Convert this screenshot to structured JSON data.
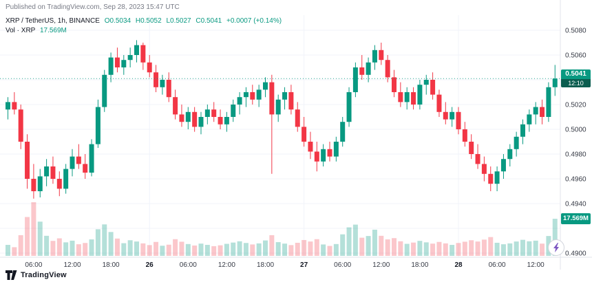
{
  "published_line": "Published on TradingView.com, Sep 28, 2023 15:47 UTC",
  "legend": {
    "symbol": "XRP / TetherUS, 1h, BINANCE",
    "open": "O0.5034",
    "high": "H0.5052",
    "low": "L0.5027",
    "close": "C0.5041",
    "change": "+0.0007 (+0.14%)",
    "volume_label": "Vol · XRP",
    "volume_value": "17.569M"
  },
  "price_axis": {
    "ticks": [
      "0.5080",
      "0.5060",
      "0.5020",
      "0.5000",
      "0.4980",
      "0.4960",
      "0.4940",
      "0.4900"
    ],
    "current_badge": {
      "price": "0.5041",
      "countdown": "12:10"
    },
    "volume_badge": "17.569M"
  },
  "footer": {
    "brand": "TradingView"
  },
  "boost_button": {
    "icon": "lightning-bolt"
  },
  "colors": {
    "up": "#089981",
    "down": "#f23645",
    "up_volume": "rgba(8,153,129,0.30)",
    "down_volume": "rgba(242,54,69,0.28)",
    "grid": "#f0f3fa",
    "axis_border": "#e0e3eb",
    "axis_text": "#363a45",
    "text_dark": "#131722",
    "text_gray": "#787b86",
    "accent": "#089981"
  },
  "chart_data": {
    "type": "candlestick",
    "title": "XRP / TetherUS, 1h, BINANCE",
    "interval": "1h",
    "ylim": [
      0.4897,
      0.5089
    ],
    "legend_position": "top-left",
    "grid_prices": [
      0.508,
      0.506,
      0.504,
      0.502,
      0.5,
      0.498,
      0.496,
      0.494,
      0.492,
      0.49
    ],
    "x_ticks": [
      {
        "i": 4,
        "label": "06:00"
      },
      {
        "i": 10,
        "label": "12:00"
      },
      {
        "i": 16,
        "label": "18:00"
      },
      {
        "i": 22,
        "label": "26",
        "day": true
      },
      {
        "i": 28,
        "label": "06:00"
      },
      {
        "i": 34,
        "label": "12:00"
      },
      {
        "i": 40,
        "label": "18:00"
      },
      {
        "i": 46,
        "label": "27",
        "day": true
      },
      {
        "i": 52,
        "label": "06:00"
      },
      {
        "i": 58,
        "label": "12:00"
      },
      {
        "i": 64,
        "label": "18:00"
      },
      {
        "i": 70,
        "label": "28",
        "day": true
      },
      {
        "i": 76,
        "label": "06:00"
      },
      {
        "i": 82,
        "label": "12:00"
      }
    ],
    "open": [
      0.5016,
      0.5022,
      0.5016,
      0.499,
      0.496,
      0.495,
      0.4962,
      0.497,
      0.496,
      0.4952,
      0.4968,
      0.4978,
      0.4972,
      0.4965,
      0.4988,
      0.5018,
      0.5044,
      0.5058,
      0.505,
      0.5056,
      0.506,
      0.5068,
      0.5054,
      0.5046,
      0.5034,
      0.504,
      0.5026,
      0.5012,
      0.5006,
      0.5014,
      0.5002,
      0.501,
      0.5016,
      0.501,
      0.5004,
      0.501,
      0.502,
      0.5026,
      0.503,
      0.5024,
      0.5032,
      0.5038,
      0.5012,
      0.5024,
      0.503,
      0.5016,
      0.5002,
      0.499,
      0.4982,
      0.4974,
      0.4984,
      0.4978,
      0.499,
      0.5006,
      0.503,
      0.505,
      0.5044,
      0.5054,
      0.5064,
      0.5056,
      0.5042,
      0.503,
      0.5022,
      0.503,
      0.502,
      0.5036,
      0.504,
      0.5028,
      0.5014,
      0.5008,
      0.5014,
      0.5,
      0.499,
      0.498,
      0.4972,
      0.4964,
      0.4956,
      0.4966,
      0.4976,
      0.4984,
      0.4994,
      0.5004,
      0.5012,
      0.5018,
      0.501,
      0.5034
    ],
    "high": [
      0.5026,
      0.503,
      0.502,
      0.4996,
      0.4972,
      0.4968,
      0.4976,
      0.4978,
      0.4966,
      0.4972,
      0.4984,
      0.4988,
      0.498,
      0.4992,
      0.5024,
      0.5048,
      0.5062,
      0.5066,
      0.506,
      0.5066,
      0.5072,
      0.507,
      0.506,
      0.5052,
      0.5044,
      0.5046,
      0.5032,
      0.502,
      0.5018,
      0.5018,
      0.5014,
      0.502,
      0.5022,
      0.5016,
      0.5014,
      0.5024,
      0.503,
      0.5034,
      0.5036,
      0.5036,
      0.5042,
      0.5044,
      0.5028,
      0.5034,
      0.5036,
      0.5022,
      0.501,
      0.4998,
      0.499,
      0.4988,
      0.499,
      0.4994,
      0.501,
      0.5034,
      0.5054,
      0.506,
      0.5058,
      0.5068,
      0.507,
      0.506,
      0.5048,
      0.5038,
      0.5034,
      0.5034,
      0.504,
      0.5044,
      0.5046,
      0.5032,
      0.5022,
      0.5018,
      0.5018,
      0.5006,
      0.4996,
      0.4988,
      0.4978,
      0.497,
      0.497,
      0.498,
      0.4988,
      0.4998,
      0.5008,
      0.5016,
      0.5022,
      0.5024,
      0.5038,
      0.5052
    ],
    "low": [
      0.5008,
      0.5012,
      0.4984,
      0.4952,
      0.4944,
      0.4945,
      0.4954,
      0.4956,
      0.4946,
      0.4948,
      0.4962,
      0.4968,
      0.496,
      0.4962,
      0.4985,
      0.5014,
      0.5038,
      0.5046,
      0.5044,
      0.505,
      0.5054,
      0.5048,
      0.5042,
      0.503,
      0.5028,
      0.5022,
      0.5008,
      0.5002,
      0.5,
      0.4998,
      0.4996,
      0.5004,
      0.5006,
      0.5,
      0.4998,
      0.5006,
      0.5012,
      0.5018,
      0.502,
      0.5018,
      0.5026,
      0.4964,
      0.5006,
      0.5016,
      0.5012,
      0.4998,
      0.4986,
      0.4976,
      0.4966,
      0.497,
      0.4974,
      0.4974,
      0.4986,
      0.5002,
      0.5026,
      0.504,
      0.5038,
      0.5048,
      0.5052,
      0.5038,
      0.5026,
      0.5018,
      0.5016,
      0.5016,
      0.5016,
      0.5028,
      0.5024,
      0.501,
      0.5004,
      0.5002,
      0.4996,
      0.4986,
      0.4976,
      0.4968,
      0.4958,
      0.495,
      0.495,
      0.496,
      0.497,
      0.4978,
      0.4988,
      0.4998,
      0.5004,
      0.5004,
      0.5006,
      0.5027
    ],
    "close": [
      0.5022,
      0.5016,
      0.499,
      0.496,
      0.495,
      0.4962,
      0.497,
      0.496,
      0.4952,
      0.4968,
      0.4978,
      0.4972,
      0.4965,
      0.4988,
      0.5018,
      0.5044,
      0.5058,
      0.505,
      0.5056,
      0.506,
      0.5068,
      0.5054,
      0.5046,
      0.5034,
      0.504,
      0.5026,
      0.5012,
      0.5006,
      0.5014,
      0.5002,
      0.501,
      0.5016,
      0.501,
      0.5004,
      0.501,
      0.502,
      0.5026,
      0.503,
      0.5024,
      0.5032,
      0.5038,
      0.5012,
      0.5024,
      0.503,
      0.5016,
      0.5002,
      0.499,
      0.4982,
      0.4974,
      0.4984,
      0.4978,
      0.499,
      0.5006,
      0.503,
      0.505,
      0.5044,
      0.5054,
      0.5064,
      0.5056,
      0.5042,
      0.503,
      0.5022,
      0.503,
      0.502,
      0.5036,
      0.504,
      0.5028,
      0.5014,
      0.5008,
      0.5014,
      0.5,
      0.499,
      0.498,
      0.4972,
      0.4964,
      0.4956,
      0.4966,
      0.4976,
      0.4984,
      0.4994,
      0.5004,
      0.5012,
      0.5018,
      0.501,
      0.5034,
      0.5041
    ],
    "volume_m": [
      5.2,
      4.1,
      9.8,
      18.4,
      25.4,
      16.2,
      9.5,
      7.1,
      8.3,
      6.4,
      7.2,
      5.5,
      6.1,
      7.8,
      12.6,
      14.9,
      11.3,
      8.2,
      6.0,
      7.4,
      6.8,
      5.9,
      5.1,
      6.6,
      4.8,
      5.3,
      7.9,
      6.7,
      5.6,
      4.9,
      5.8,
      5.2,
      4.6,
      5.0,
      5.7,
      6.3,
      6.9,
      6.1,
      5.4,
      5.9,
      7.3,
      9.8,
      6.5,
      5.8,
      5.1,
      6.2,
      7.5,
      6.8,
      7.9,
      5.4,
      4.7,
      5.6,
      10.2,
      13.5,
      14.8,
      8.6,
      9.4,
      12.4,
      9.5,
      7.8,
      8.4,
      6.9,
      5.7,
      6.3,
      7.1,
      6.4,
      5.8,
      6.6,
      5.9,
      5.2,
      6.1,
      6.7,
      7.4,
      6.8,
      7.7,
      8.9,
      6.2,
      5.5,
      5.9,
      6.8,
      7.6,
      6.9,
      7.2,
      5.8,
      9.4,
      17.569
    ],
    "last_bar": {
      "open": 0.5034,
      "high": 0.5052,
      "low": 0.5027,
      "close": 0.5041,
      "volume_m": 17.569,
      "change": 0.0007,
      "change_pct": 0.14
    }
  }
}
